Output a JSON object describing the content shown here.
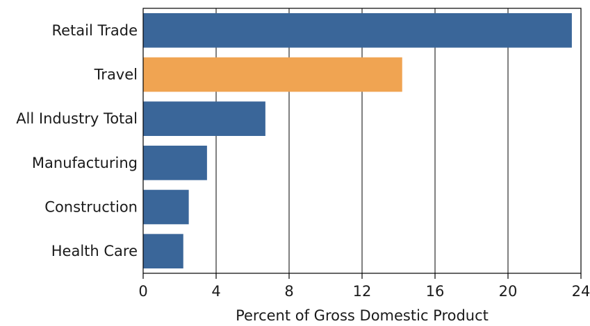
{
  "chart_data": {
    "type": "bar",
    "orientation": "horizontal",
    "categories": [
      "Retail Trade",
      "Travel",
      "All Industry Total",
      "Manufacturing",
      "Construction",
      "Health Care"
    ],
    "values": [
      23.5,
      14.2,
      6.7,
      3.5,
      2.5,
      2.2
    ],
    "highlight_index": 1,
    "xlabel": "Percent of Gross Domestic Product",
    "ylabel": "",
    "xlim": [
      0,
      24
    ],
    "xticks": [
      "0",
      "4",
      "8",
      "12",
      "16",
      "20",
      "24"
    ],
    "grid": "vertical",
    "colors": {
      "bar": "#3a6699",
      "highlight": "#f0a452"
    }
  }
}
